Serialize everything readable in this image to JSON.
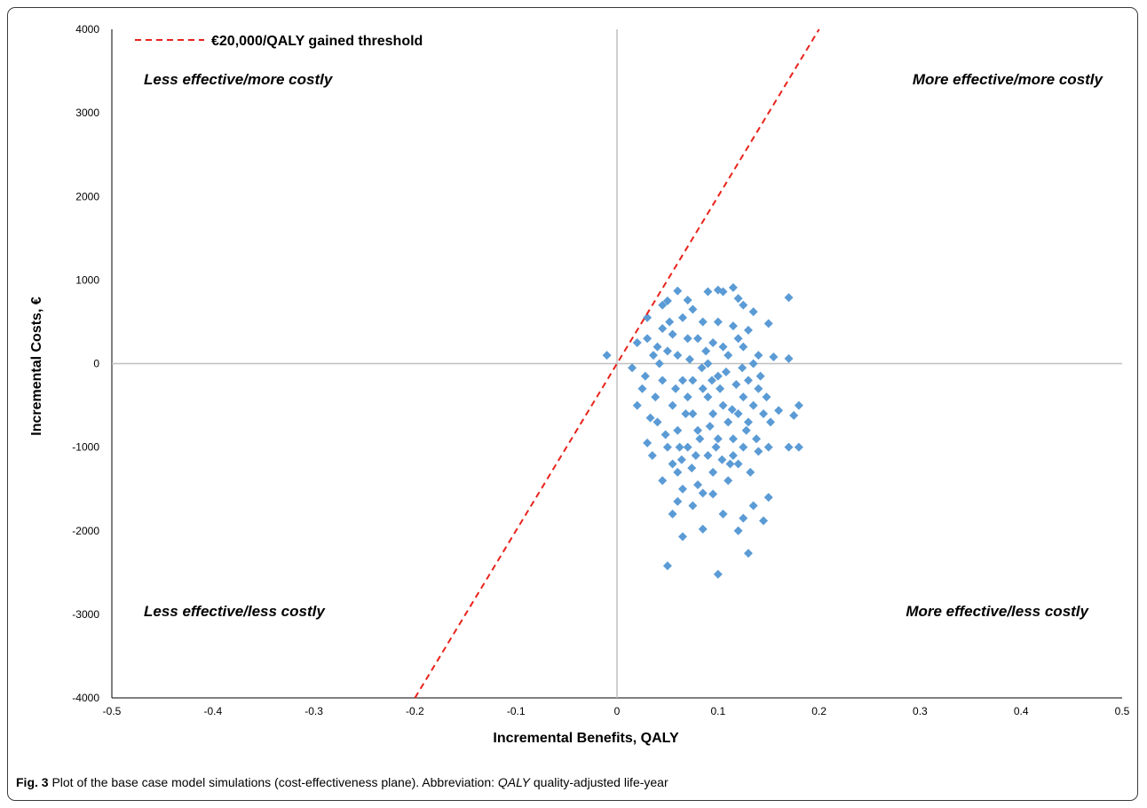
{
  "caption": {
    "label": "Fig. 3",
    "text_before": " Plot of the base case model simulations (cost-effectiveness plane). Abbreviation: ",
    "abbr": "QALY",
    "text_after": " quality-adjusted life-year"
  },
  "colors": {
    "points": "#5b9bd5",
    "threshold": "#e8231c",
    "axes": "#bfbfbf",
    "frame": "#3a3a3a"
  },
  "chart_data": {
    "type": "scatter",
    "title": "",
    "xlabel": "Incremental Benefits, QALY",
    "ylabel": "Incremental Costs, €",
    "xlim": [
      -0.5,
      0.5
    ],
    "ylim": [
      -4000,
      4000
    ],
    "x_ticks": [
      "-0.5",
      "-0.4",
      "-0.3",
      "-0.2",
      "-0.1",
      "0",
      "0.1",
      "0.2",
      "0.3",
      "0.4",
      "0.5"
    ],
    "y_ticks": [
      "4000",
      "3000",
      "2000",
      "1000",
      "0",
      "-1000",
      "-2000",
      "-3000",
      "-4000"
    ],
    "grid": false,
    "legend": {
      "placement": "top-left",
      "entries": [
        "€20,000/QALY gained threshold"
      ]
    },
    "threshold_line": {
      "name": "€20,000/QALY gained threshold",
      "slope": 20000,
      "style": "dashed"
    },
    "quadrant_labels": {
      "top_left": "Less effective/more costly",
      "top_right": "More effective/more costly",
      "bottom_left": "Less effective/less costly",
      "bottom_right": "More effective/less costly"
    },
    "series": [
      {
        "marker": "diamond",
        "points": [
          [
            -0.01,
            100
          ],
          [
            0.02,
            250
          ],
          [
            0.03,
            550
          ],
          [
            0.045,
            700
          ],
          [
            0.05,
            750
          ],
          [
            0.06,
            870
          ],
          [
            0.07,
            760
          ],
          [
            0.09,
            860
          ],
          [
            0.1,
            880
          ],
          [
            0.105,
            860
          ],
          [
            0.115,
            910
          ],
          [
            0.12,
            780
          ],
          [
            0.125,
            700
          ],
          [
            0.135,
            620
          ],
          [
            0.15,
            480
          ],
          [
            0.17,
            790
          ],
          [
            0.17,
            60
          ],
          [
            0.155,
            80
          ],
          [
            0.18,
            -500
          ],
          [
            0.175,
            -620
          ],
          [
            0.17,
            -1000
          ],
          [
            0.18,
            -1000
          ],
          [
            0.16,
            -560
          ],
          [
            0.15,
            -1000
          ],
          [
            0.14,
            -1050
          ],
          [
            0.15,
            -1600
          ],
          [
            0.145,
            -1880
          ],
          [
            0.135,
            -1700
          ],
          [
            0.125,
            -1850
          ],
          [
            0.12,
            -2000
          ],
          [
            0.13,
            -2270
          ],
          [
            0.1,
            -2520
          ],
          [
            0.05,
            -2420
          ],
          [
            0.065,
            -2070
          ],
          [
            0.085,
            -1980
          ],
          [
            0.105,
            -1800
          ],
          [
            0.055,
            -1800
          ],
          [
            0.06,
            -1650
          ],
          [
            0.075,
            -1700
          ],
          [
            0.095,
            -1560
          ],
          [
            0.045,
            -1400
          ],
          [
            0.035,
            -1100
          ],
          [
            0.03,
            -950
          ],
          [
            0.02,
            -500
          ],
          [
            0.025,
            -300
          ],
          [
            0.015,
            -50
          ],
          [
            0.03,
            300
          ],
          [
            0.04,
            200
          ],
          [
            0.045,
            420
          ],
          [
            0.055,
            350
          ],
          [
            0.06,
            100
          ],
          [
            0.065,
            -200
          ],
          [
            0.07,
            -400
          ],
          [
            0.075,
            -600
          ],
          [
            0.08,
            -800
          ],
          [
            0.085,
            -300
          ],
          [
            0.09,
            0
          ],
          [
            0.095,
            250
          ],
          [
            0.1,
            -150
          ],
          [
            0.105,
            -500
          ],
          [
            0.11,
            -700
          ],
          [
            0.115,
            -900
          ],
          [
            0.12,
            -1200
          ],
          [
            0.125,
            -400
          ],
          [
            0.13,
            -200
          ],
          [
            0.135,
            0
          ],
          [
            0.14,
            -300
          ],
          [
            0.145,
            -600
          ],
          [
            0.05,
            -1000
          ],
          [
            0.055,
            -1200
          ],
          [
            0.06,
            -1300
          ],
          [
            0.065,
            -1500
          ],
          [
            0.07,
            -1000
          ],
          [
            0.075,
            -200
          ],
          [
            0.08,
            300
          ],
          [
            0.085,
            500
          ],
          [
            0.09,
            -1100
          ],
          [
            0.095,
            -1300
          ],
          [
            0.1,
            -900
          ],
          [
            0.11,
            100
          ],
          [
            0.115,
            450
          ],
          [
            0.12,
            300
          ],
          [
            0.125,
            -1000
          ],
          [
            0.13,
            -700
          ],
          [
            0.04,
            -700
          ],
          [
            0.045,
            -200
          ],
          [
            0.05,
            150
          ],
          [
            0.055,
            -500
          ],
          [
            0.06,
            -800
          ],
          [
            0.065,
            550
          ],
          [
            0.07,
            300
          ],
          [
            0.075,
            650
          ],
          [
            0.08,
            -1450
          ],
          [
            0.085,
            -1550
          ],
          [
            0.09,
            -400
          ],
          [
            0.095,
            -600
          ],
          [
            0.1,
            500
          ],
          [
            0.105,
            200
          ],
          [
            0.11,
            -1400
          ],
          [
            0.115,
            -1100
          ],
          [
            0.12,
            -600
          ],
          [
            0.125,
            200
          ],
          [
            0.13,
            400
          ],
          [
            0.135,
            -500
          ],
          [
            0.14,
            100
          ],
          [
            0.038,
            -400
          ],
          [
            0.042,
            0
          ],
          [
            0.048,
            -850
          ],
          [
            0.052,
            500
          ],
          [
            0.058,
            -300
          ],
          [
            0.062,
            -1000
          ],
          [
            0.068,
            -600
          ],
          [
            0.072,
            50
          ],
          [
            0.078,
            -1100
          ],
          [
            0.082,
            -900
          ],
          [
            0.088,
            150
          ],
          [
            0.092,
            -750
          ],
          [
            0.098,
            -1000
          ],
          [
            0.102,
            -300
          ],
          [
            0.108,
            -100
          ],
          [
            0.112,
            -1200
          ],
          [
            0.118,
            -250
          ],
          [
            0.128,
            -800
          ],
          [
            0.132,
            -1300
          ],
          [
            0.138,
            -900
          ],
          [
            0.142,
            -150
          ],
          [
            0.148,
            -400
          ],
          [
            0.152,
            -700
          ],
          [
            0.033,
            -650
          ],
          [
            0.028,
            -150
          ],
          [
            0.036,
            100
          ],
          [
            0.064,
            -1150
          ],
          [
            0.074,
            -1250
          ],
          [
            0.084,
            -50
          ],
          [
            0.094,
            -200
          ],
          [
            0.104,
            -1150
          ],
          [
            0.114,
            -550
          ],
          [
            0.124,
            -50
          ]
        ]
      }
    ]
  }
}
